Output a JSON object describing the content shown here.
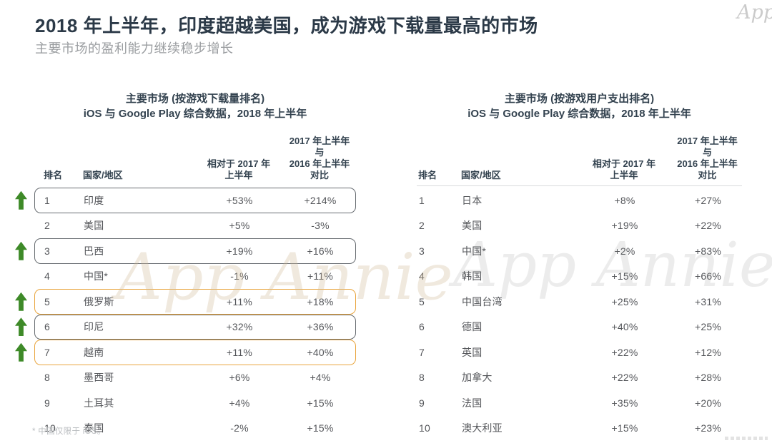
{
  "header": {
    "title": "2018 年上半年，印度超越美国，成为游戏下载量最高的市场",
    "subtitle": "主要市场的盈利能力继续稳步增长",
    "logo_text": "App Annie"
  },
  "watermark": {
    "text": "App Annie"
  },
  "columns": {
    "rank": "排名",
    "country": "国家/地区",
    "col1_line1": "相对于 2017 年",
    "col1_line2": "上半年",
    "col2_line1": "2017 年上半年与",
    "col2_line2": "2016 年上半年对比"
  },
  "left_table": {
    "title_line1": "主要市场 (按游戏下载量排名)",
    "title_line2": "iOS 与 Google Play 综合数据，2018 年上半年",
    "rows": [
      {
        "rank": "1",
        "country": "印度",
        "vs2017": "+53%",
        "vs2016": "+214%",
        "arrow": true,
        "box": "gray"
      },
      {
        "rank": "2",
        "country": "美国",
        "vs2017": "+5%",
        "vs2016": "-3%",
        "arrow": false,
        "box": null
      },
      {
        "rank": "3",
        "country": "巴西",
        "vs2017": "+19%",
        "vs2016": "+16%",
        "arrow": true,
        "box": "gray"
      },
      {
        "rank": "4",
        "country": "中国*",
        "vs2017": "-1%",
        "vs2016": "+11%",
        "arrow": false,
        "box": null
      },
      {
        "rank": "5",
        "country": "俄罗斯",
        "vs2017": "+11%",
        "vs2016": "+18%",
        "arrow": true,
        "box": "orange"
      },
      {
        "rank": "6",
        "country": "印尼",
        "vs2017": "+32%",
        "vs2016": "+36%",
        "arrow": true,
        "box": "gray"
      },
      {
        "rank": "7",
        "country": "越南",
        "vs2017": "+11%",
        "vs2016": "+40%",
        "arrow": true,
        "box": "orange"
      },
      {
        "rank": "8",
        "country": "墨西哥",
        "vs2017": "+6%",
        "vs2016": "+4%",
        "arrow": false,
        "box": null
      },
      {
        "rank": "9",
        "country": "土耳其",
        "vs2017": "+4%",
        "vs2016": "+15%",
        "arrow": false,
        "box": null
      },
      {
        "rank": "10",
        "country": "泰国",
        "vs2017": "-2%",
        "vs2016": "+15%",
        "arrow": false,
        "box": null
      }
    ]
  },
  "right_table": {
    "title_line1": "主要市场 (按游戏用户支出排名)",
    "title_line2": "iOS 与 Google Play 综合数据，2018 年上半年",
    "rows": [
      {
        "rank": "1",
        "country": "日本",
        "vs2017": "+8%",
        "vs2016": "+27%",
        "arrow": false,
        "box": null
      },
      {
        "rank": "2",
        "country": "美国",
        "vs2017": "+19%",
        "vs2016": "+22%",
        "arrow": false,
        "box": null
      },
      {
        "rank": "3",
        "country": "中国*",
        "vs2017": "+2%",
        "vs2016": "+83%",
        "arrow": false,
        "box": null
      },
      {
        "rank": "4",
        "country": "韩国",
        "vs2017": "+15%",
        "vs2016": "+66%",
        "arrow": false,
        "box": null
      },
      {
        "rank": "5",
        "country": "中国台湾",
        "vs2017": "+25%",
        "vs2016": "+31%",
        "arrow": false,
        "box": null
      },
      {
        "rank": "6",
        "country": "德国",
        "vs2017": "+40%",
        "vs2016": "+25%",
        "arrow": false,
        "box": null
      },
      {
        "rank": "7",
        "country": "英国",
        "vs2017": "+22%",
        "vs2016": "+12%",
        "arrow": false,
        "box": null
      },
      {
        "rank": "8",
        "country": "加拿大",
        "vs2017": "+22%",
        "vs2016": "+28%",
        "arrow": false,
        "box": null
      },
      {
        "rank": "9",
        "country": "法国",
        "vs2017": "+35%",
        "vs2016": "+20%",
        "arrow": false,
        "box": null
      },
      {
        "rank": "10",
        "country": "澳大利亚",
        "vs2017": "+15%",
        "vs2016": "+23%",
        "arrow": false,
        "box": null
      }
    ]
  },
  "footnote": "* 中国仅限于 iOS。",
  "colors": {
    "title_navy": "#2b3947",
    "body_text": "#54565a",
    "arrow_green": "#3e8a28",
    "box_orange": "#e9a53e",
    "box_gray": "#676c71",
    "watermark_tan": "#d0bc98",
    "divider_gray": "#d8dadb"
  },
  "chart_data": [
    {
      "type": "table",
      "title": "主要市场 (按游戏下载量排名) — iOS 与 Google Play 综合数据，2018 年上半年",
      "columns": [
        "排名",
        "国家/地区",
        "相对于 2017 年上半年",
        "2017 年上半年与 2016 年上半年对比"
      ],
      "rows": [
        [
          1,
          "印度",
          "+53%",
          "+214%"
        ],
        [
          2,
          "美国",
          "+5%",
          "-3%"
        ],
        [
          3,
          "巴西",
          "+19%",
          "+16%"
        ],
        [
          4,
          "中国*",
          "-1%",
          "+11%"
        ],
        [
          5,
          "俄罗斯",
          "+11%",
          "+18%"
        ],
        [
          6,
          "印尼",
          "+32%",
          "+36%"
        ],
        [
          7,
          "越南",
          "+11%",
          "+40%"
        ],
        [
          8,
          "墨西哥",
          "+6%",
          "+4%"
        ],
        [
          9,
          "土耳其",
          "+4%",
          "+15%"
        ],
        [
          10,
          "泰国",
          "-2%",
          "+15%"
        ]
      ],
      "highlighted_rows_gray_box": [
        1,
        3,
        6
      ],
      "highlighted_rows_orange_box": [
        5,
        7
      ],
      "rank_up_arrow_rows": [
        1,
        3,
        5,
        6,
        7
      ]
    },
    {
      "type": "table",
      "title": "主要市场 (按游戏用户支出排名) — iOS 与 Google Play 综合数据，2018 年上半年",
      "columns": [
        "排名",
        "国家/地区",
        "相对于 2017 年上半年",
        "2017 年上半年与 2016 年上半年对比"
      ],
      "rows": [
        [
          1,
          "日本",
          "+8%",
          "+27%"
        ],
        [
          2,
          "美国",
          "+19%",
          "+22%"
        ],
        [
          3,
          "中国*",
          "+2%",
          "+83%"
        ],
        [
          4,
          "韩国",
          "+15%",
          "+66%"
        ],
        [
          5,
          "中国台湾",
          "+25%",
          "+31%"
        ],
        [
          6,
          "德国",
          "+40%",
          "+25%"
        ],
        [
          7,
          "英国",
          "+22%",
          "+12%"
        ],
        [
          8,
          "加拿大",
          "+22%",
          "+28%"
        ],
        [
          9,
          "法国",
          "+35%",
          "+20%"
        ],
        [
          10,
          "澳大利亚",
          "+15%",
          "+23%"
        ]
      ]
    }
  ]
}
